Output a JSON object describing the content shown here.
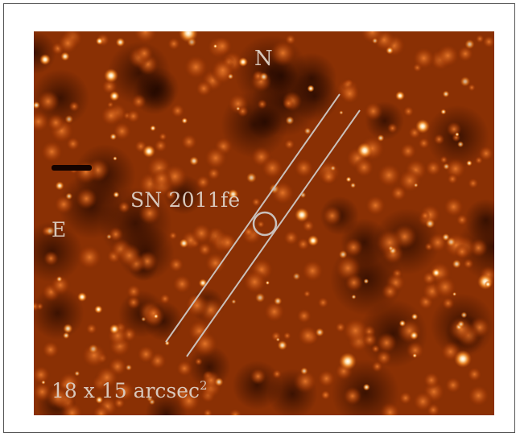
{
  "image": {
    "description_icon": "star-field-image",
    "colormap": [
      "#1a0500",
      "#4a1200",
      "#7a2700",
      "#b84a08",
      "#ef8a28",
      "#ffd9a0",
      "#ffffff"
    ]
  },
  "labels": {
    "north": "N",
    "east": "E",
    "target": "SN 2011fe",
    "scale_text": "18 x 15 arcsec",
    "scale_exponent": "2"
  },
  "overlay": {
    "slit_color": "#c9c0bb",
    "marker_color": "#c9c0bb"
  }
}
